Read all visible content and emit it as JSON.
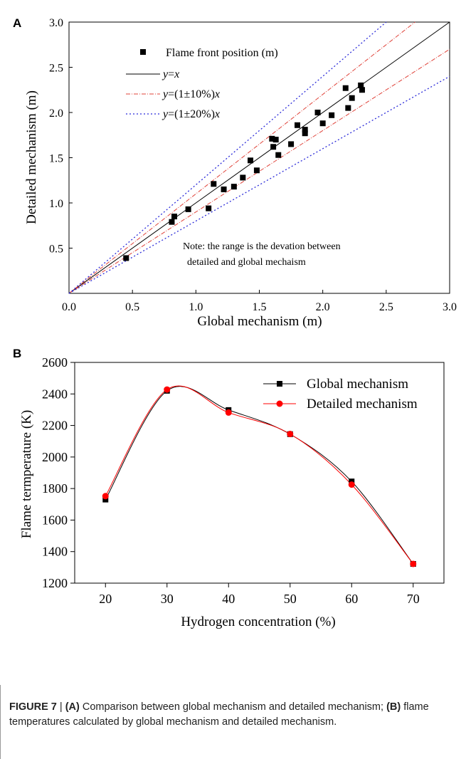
{
  "chart_data": [
    {
      "type": "scatter",
      "panel_label": "A",
      "xlabel": "Global mechanism (m)",
      "ylabel": "Detailed mechanism (m)",
      "xlim": [
        0,
        3.0
      ],
      "ylim": [
        0,
        3.0
      ],
      "x_ticks": [
        "0.0",
        "0.5",
        "1.0",
        "1.5",
        "2.0",
        "2.5",
        "3.0"
      ],
      "y_ticks": [
        "0.5",
        "1.0",
        "1.5",
        "2.0",
        "2.5",
        "3.0"
      ],
      "grid": false,
      "legend_position": "top-left",
      "series": [
        {
          "name": "Flame front position (m)",
          "marker": "square",
          "color": "#000000",
          "points": [
            [
              0.45,
              0.39
            ],
            [
              0.81,
              0.79
            ],
            [
              0.83,
              0.85
            ],
            [
              0.94,
              0.93
            ],
            [
              1.1,
              0.94
            ],
            [
              1.14,
              1.21
            ],
            [
              1.22,
              1.15
            ],
            [
              1.3,
              1.18
            ],
            [
              1.37,
              1.28
            ],
            [
              1.43,
              1.47
            ],
            [
              1.48,
              1.36
            ],
            [
              1.6,
              1.71
            ],
            [
              1.61,
              1.62
            ],
            [
              1.63,
              1.7
            ],
            [
              1.65,
              1.53
            ],
            [
              1.75,
              1.65
            ],
            [
              1.8,
              1.86
            ],
            [
              1.86,
              1.81
            ],
            [
              1.86,
              1.77
            ],
            [
              1.96,
              2.0
            ],
            [
              2.0,
              1.88
            ],
            [
              2.07,
              1.97
            ],
            [
              2.18,
              2.27
            ],
            [
              2.2,
              2.05
            ],
            [
              2.23,
              2.16
            ],
            [
              2.3,
              2.3
            ],
            [
              2.31,
              2.25
            ]
          ]
        },
        {
          "name": "y=x",
          "line": true,
          "slope": 1.0,
          "color": "#000000",
          "dash": "solid"
        },
        {
          "name": "y=(1±10%)x",
          "line": true,
          "slopes": [
            1.1,
            0.9
          ],
          "color": "#e0433a",
          "dash": "dashdot"
        },
        {
          "name": "y=(1±20%)x",
          "line": true,
          "slopes": [
            1.2,
            0.8
          ],
          "color": "#2b2bd9",
          "dash": "dot"
        }
      ],
      "legend": {
        "flame_front": "Flame front position (m)",
        "eq_prefix": "y",
        "eq_x": "x",
        "eq_identity": "=",
        "eq_10": "=(1±10%)",
        "eq_20": "=(1±20%)"
      },
      "annotation": [
        "Note: the range is the devation between",
        "detailed and global mechaism"
      ]
    },
    {
      "type": "line",
      "panel_label": "B",
      "xlabel": "Hydrogen concentration (%)",
      "ylabel": "Flame termperature (K)",
      "xlim": [
        15,
        75
      ],
      "ylim": [
        1200,
        2600
      ],
      "x_ticks": [
        "20",
        "30",
        "40",
        "50",
        "60",
        "70"
      ],
      "y_ticks": [
        "1200",
        "1400",
        "1600",
        "1800",
        "2000",
        "2200",
        "2400",
        "2600"
      ],
      "grid": false,
      "legend_position": "top-right",
      "x": [
        20,
        30,
        40,
        50,
        60,
        70
      ],
      "series": [
        {
          "name": "Global mechanism",
          "marker": "square",
          "color": "#000000",
          "values": [
            1730,
            2420,
            2298,
            2145,
            1845,
            1322
          ]
        },
        {
          "name": "Detailed mechanism",
          "marker": "circle",
          "color": "#ff0000",
          "values": [
            1752,
            2428,
            2282,
            2146,
            1825,
            1322
          ]
        }
      ]
    }
  ],
  "caption": {
    "figure_label": "FIGURE 7",
    "separator": " | ",
    "part_a": "(A)",
    "text_a": " Comparison between global mechanism and detailed mechanism; ",
    "part_b": "(B)",
    "text_b": " flame temperatures calculated by global mechanism and detailed mechanism."
  }
}
